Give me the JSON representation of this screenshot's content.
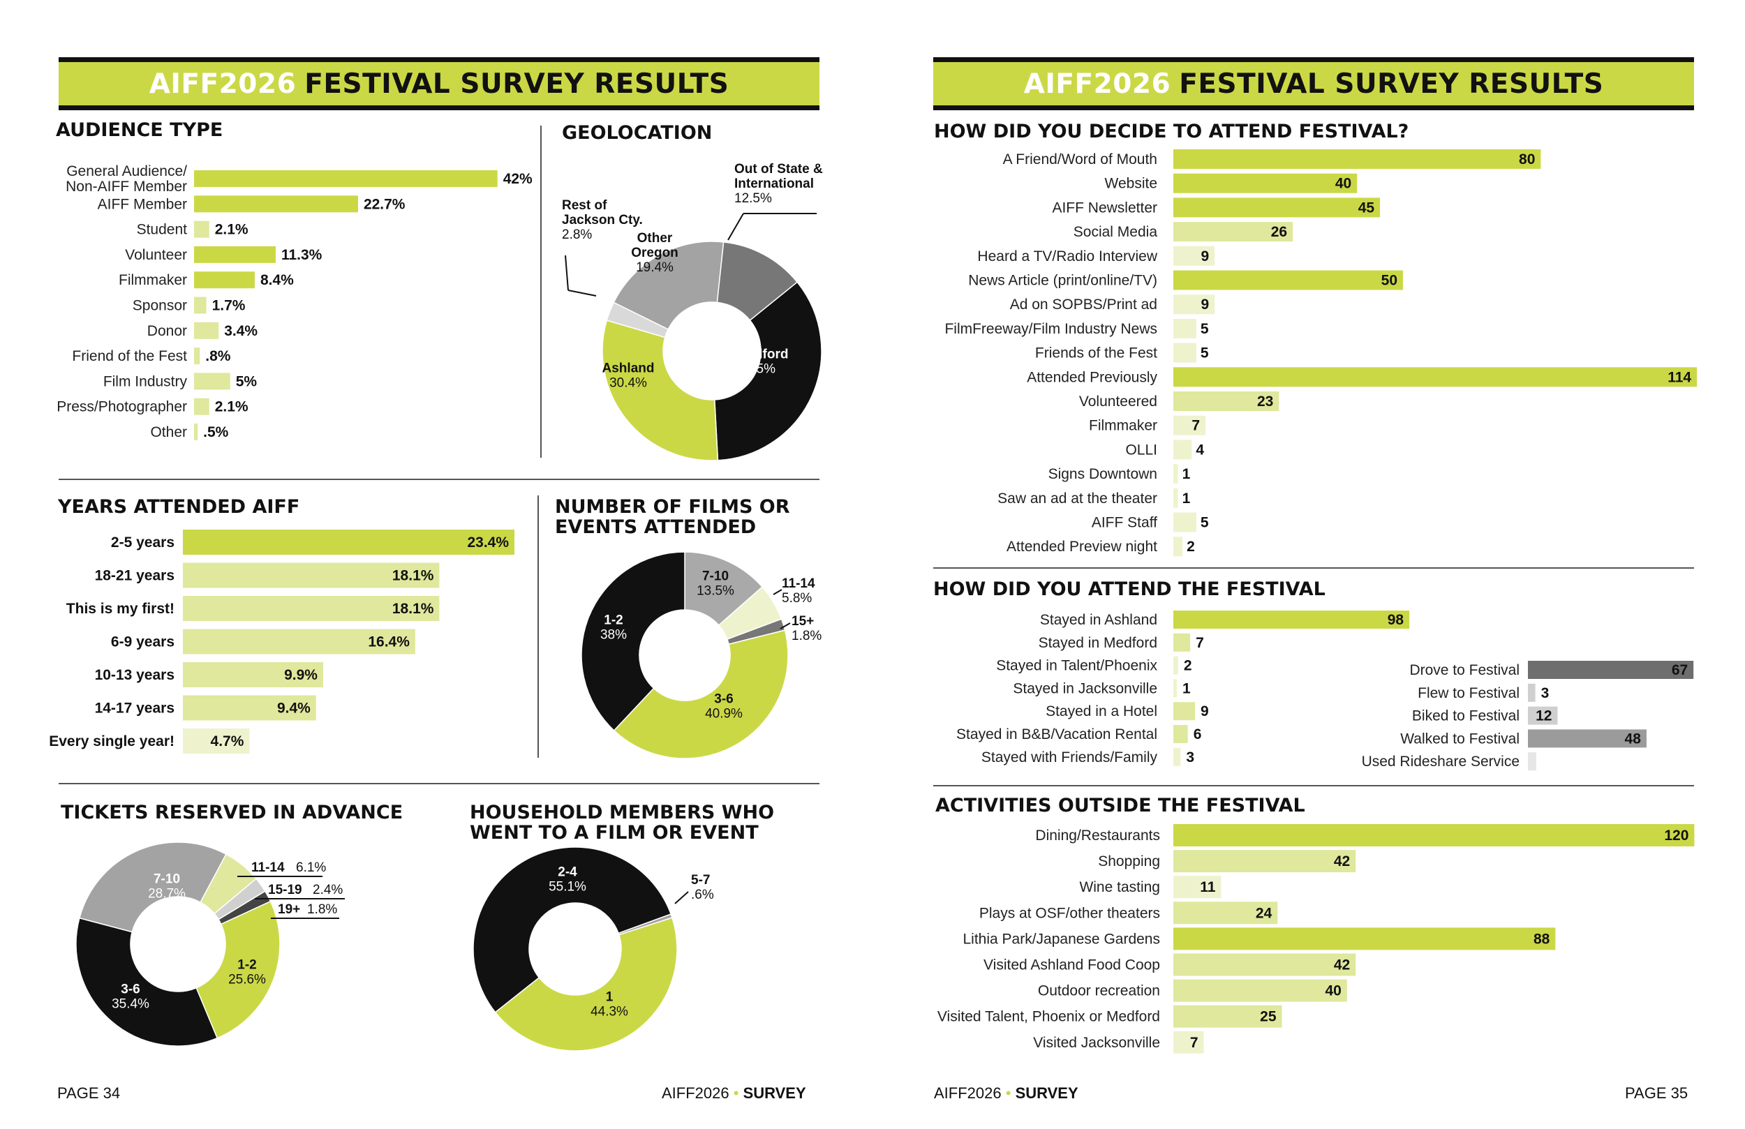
{
  "colors": {
    "accent": "#cbd846",
    "lime_light": "#dfe89c",
    "pale": "#eef3cd",
    "black": "#111111",
    "gray": "#9b9b9b",
    "gray_dark": "#6e6e6e",
    "gray_light": "#cfcfcf"
  },
  "left_page": {
    "banner": {
      "highlight": "AIFF2026",
      "rest": "FESTIVAL SURVEY RESULTS"
    },
    "footer": {
      "page": "PAGE 34",
      "brand": "AIFF2026",
      "dot": "•",
      "survey": "SURVEY"
    }
  },
  "right_page": {
    "banner": {
      "highlight": "AIFF2026",
      "rest": "FESTIVAL SURVEY RESULTS"
    },
    "footer": {
      "page": "PAGE 35",
      "brand": "AIFF2026",
      "dot": "•",
      "survey": "SURVEY"
    }
  },
  "chart_data": [
    {
      "id": "audience_type",
      "type": "bar",
      "title": "AUDIENCE TYPE",
      "orientation": "horizontal",
      "categories": [
        "General Audience/\nNon-AIFF Member",
        "AIFF Member",
        "Student",
        "Volunteer",
        "Filmmaker",
        "Sponsor",
        "Donor",
        "Friend of the Fest",
        "Film Industry",
        "Press/Photographer",
        "Other"
      ],
      "values": [
        42,
        22.7,
        2.1,
        11.3,
        8.4,
        1.7,
        3.4,
        0.8,
        5,
        2.1,
        0.5
      ],
      "value_labels": [
        "42%",
        "22.7%",
        "2.1%",
        "11.3%",
        "8.4%",
        "1.7%",
        "3.4%",
        ".8%",
        "5%",
        "2.1%",
        ".5%"
      ]
    },
    {
      "id": "geolocation",
      "type": "pie",
      "title": "GEOLOCATION",
      "donut": true,
      "slices": [
        {
          "label": "Medford",
          "value": 35,
          "value_label": "35%",
          "color": "#111111"
        },
        {
          "label": "Ashland",
          "value": 30.4,
          "value_label": "30.4%",
          "color": "#cbd846"
        },
        {
          "label": "Rest of\nJackson Cty.",
          "value": 2.8,
          "value_label": "2.8%",
          "color": "#d9d9d9"
        },
        {
          "label": "Other\nOregon",
          "value": 19.4,
          "value_label": "19.4%",
          "color": "#a3a3a3"
        },
        {
          "label": "Out of State &\nInternational",
          "value": 12.5,
          "value_label": "12.5%",
          "color": "#777777"
        }
      ]
    },
    {
      "id": "years_attended",
      "type": "bar",
      "title": "YEARS ATTENDED AIFF",
      "orientation": "horizontal",
      "categories": [
        "2-5 years",
        "18-21 years",
        "This is my first!",
        "6-9 years",
        "10-13 years",
        "14-17 years",
        "Every single year!"
      ],
      "values": [
        23.4,
        18.1,
        18.1,
        16.4,
        9.9,
        9.4,
        4.7
      ],
      "value_labels": [
        "23.4%",
        "18.1%",
        "18.1%",
        "16.4%",
        "9.9%",
        "9.4%",
        "4.7%"
      ]
    },
    {
      "id": "films_attended",
      "type": "pie",
      "title": "NUMBER OF FILMS OR\nEVENTS ATTENDED",
      "donut": true,
      "slices": [
        {
          "label": "7-10",
          "value": 13.5,
          "value_label": "13.5%",
          "color": "#a9a9a9"
        },
        {
          "label": "11-14",
          "value": 5.8,
          "value_label": "5.8%",
          "color": "#eef3cd"
        },
        {
          "label": "15+",
          "value": 1.8,
          "value_label": "1.8%",
          "color": "#777777"
        },
        {
          "label": "3-6",
          "value": 40.9,
          "value_label": "40.9%",
          "color": "#cbd846"
        },
        {
          "label": "1-2",
          "value": 38,
          "value_label": "38%",
          "color": "#111111"
        }
      ]
    },
    {
      "id": "tickets_reserved",
      "type": "pie",
      "title": "TICKETS RESERVED IN ADVANCE",
      "donut": true,
      "slices": [
        {
          "label": "11-14",
          "value": 6.1,
          "value_label": "6.1%",
          "color": "#dfe89c"
        },
        {
          "label": "15-19",
          "value": 2.4,
          "value_label": "2.4%",
          "color": "#d0d0d0"
        },
        {
          "label": "19+",
          "value": 1.8,
          "value_label": "1.8%",
          "color": "#444444"
        },
        {
          "label": "1-2",
          "value": 25.6,
          "value_label": "25.6%",
          "color": "#cbd846"
        },
        {
          "label": "3-6",
          "value": 35.4,
          "value_label": "35.4%",
          "color": "#111111"
        },
        {
          "label": "7-10",
          "value": 28.7,
          "value_label": "28.7%",
          "color": "#a3a3a3"
        }
      ]
    },
    {
      "id": "household_members",
      "type": "pie",
      "title": "HOUSEHOLD MEMBERS WHO\nWENT TO A FILM OR EVENT",
      "donut": true,
      "slices": [
        {
          "label": "5-7",
          "value": 0.6,
          "value_label": ".6%",
          "color": "#a3a3a3"
        },
        {
          "label": "1",
          "value": 44.3,
          "value_label": "44.3%",
          "color": "#cbd846"
        },
        {
          "label": "2-4",
          "value": 55.1,
          "value_label": "55.1%",
          "color": "#111111"
        }
      ]
    },
    {
      "id": "decide_to_attend",
      "type": "bar",
      "title": "HOW DID YOU DECIDE TO ATTEND FESTIVAL?",
      "orientation": "horizontal",
      "categories": [
        "A Friend/Word of Mouth",
        "Website",
        "AIFF Newsletter",
        "Social Media",
        "Heard a TV/Radio Interview",
        "News Article (print/online/TV)",
        "Ad on SOPBS/Print ad",
        "FilmFreeway/Film Industry News",
        "Friends of the Fest",
        "Attended Previously",
        "Volunteered",
        "Filmmaker",
        "OLLI",
        "Signs Downtown",
        "Saw an ad at the theater",
        "AIFF Staff",
        "Attended Preview night"
      ],
      "values": [
        80,
        40,
        45,
        26,
        9,
        50,
        9,
        5,
        5,
        114,
        23,
        7,
        4,
        1,
        1,
        5,
        2
      ]
    },
    {
      "id": "stayed",
      "type": "bar",
      "title": "HOW DID YOU ATTEND THE FESTIVAL",
      "orientation": "horizontal",
      "categories": [
        "Stayed in Ashland",
        "Stayed in Medford",
        "Stayed in Talent/Phoenix",
        "Stayed in Jacksonville",
        "Stayed in a Hotel",
        "Stayed in B&B/Vacation Rental",
        "Stayed with Friends/Family"
      ],
      "values": [
        98,
        7,
        2,
        1,
        9,
        6,
        3
      ]
    },
    {
      "id": "travel",
      "type": "bar",
      "orientation": "horizontal",
      "categories": [
        "Drove to Festival",
        "Flew to Festival",
        "Biked to Festival",
        "Walked to Festival",
        "Used Rideshare Service"
      ],
      "values": [
        67,
        3,
        12,
        48,
        null
      ],
      "value_labels": [
        "67",
        "3",
        "12",
        "48",
        ""
      ]
    },
    {
      "id": "activities",
      "type": "bar",
      "title": "ACTIVITIES OUTSIDE THE FESTIVAL",
      "orientation": "horizontal",
      "categories": [
        "Dining/Restaurants",
        "Shopping",
        "Wine tasting",
        "Plays at OSF/other theaters",
        "Lithia Park/Japanese Gardens",
        "Visited Ashland Food Coop",
        "Outdoor recreation",
        "Visited Talent, Phoenix or Medford",
        "Visited Jacksonville"
      ],
      "values": [
        120,
        42,
        11,
        24,
        88,
        42,
        40,
        25,
        7
      ]
    }
  ]
}
